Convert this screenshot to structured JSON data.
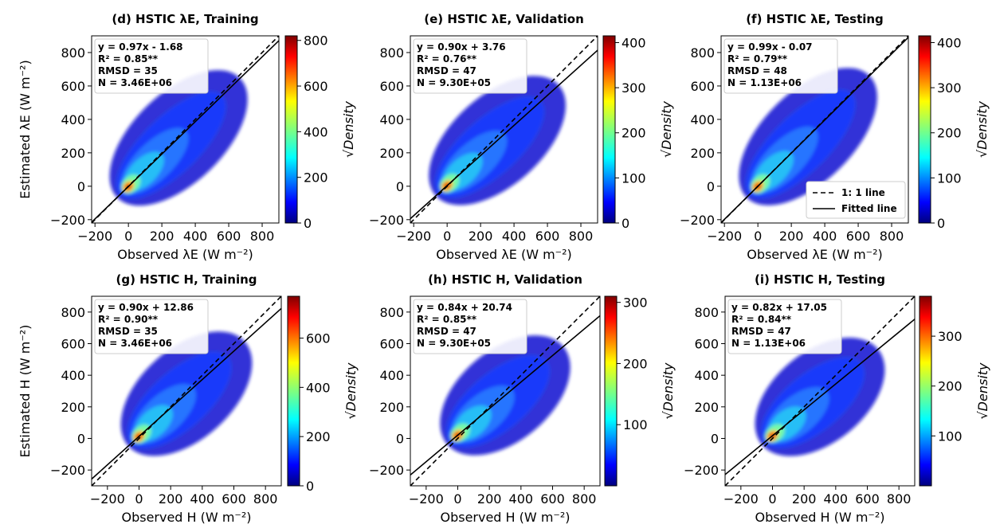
{
  "legend": {
    "one_to_one": "1: 1 line",
    "fitted": "Fitted line"
  },
  "cbar_label": "√Density",
  "chart_data": [
    {
      "type": "scatter",
      "title": "(d) HSTIC λE, Training",
      "xlabel": "Observed λE (W m⁻²)",
      "ylabel": "Estimated λE (W m⁻²)",
      "xlim": [
        -220,
        900
      ],
      "ylim": [
        -220,
        900
      ],
      "xticks": [
        -200,
        0,
        200,
        400,
        600,
        800
      ],
      "yticks": [
        -200,
        0,
        200,
        400,
        600,
        800
      ],
      "fit": {
        "slope": 0.97,
        "intercept": -1.68
      },
      "stats": [
        "y = 0.97x - 1.68",
        "R² = 0.85**",
        "RMSD = 35",
        "N = 3.46E+06"
      ],
      "colorbar": {
        "min": 0,
        "max": 820,
        "ticks": [
          0,
          200,
          400,
          600,
          800
        ]
      },
      "legend_shown": false
    },
    {
      "type": "scatter",
      "title": "(e) HSTIC λE, Validation",
      "xlabel": "Observed λE (W m⁻²)",
      "ylabel": "",
      "xlim": [
        -220,
        900
      ],
      "ylim": [
        -220,
        900
      ],
      "xticks": [
        -200,
        0,
        200,
        400,
        600,
        800
      ],
      "yticks": [
        -200,
        0,
        200,
        400,
        600,
        800
      ],
      "fit": {
        "slope": 0.9,
        "intercept": 3.76
      },
      "stats": [
        "y = 0.90x + 3.76",
        "R² = 0.76**",
        "RMSD = 47",
        "N = 9.30E+05"
      ],
      "colorbar": {
        "min": 0,
        "max": 415,
        "ticks": [
          0,
          100,
          200,
          300,
          400
        ]
      },
      "legend_shown": false
    },
    {
      "type": "scatter",
      "title": "(f) HSTIC λE, Testing",
      "xlabel": "Observed λE (W m⁻²)",
      "ylabel": "",
      "xlim": [
        -220,
        900
      ],
      "ylim": [
        -220,
        900
      ],
      "xticks": [
        -200,
        0,
        200,
        400,
        600,
        800
      ],
      "yticks": [
        -200,
        0,
        200,
        400,
        600,
        800
      ],
      "fit": {
        "slope": 0.99,
        "intercept": -0.07
      },
      "stats": [
        "y = 0.99x - 0.07",
        "R² = 0.79**",
        "RMSD = 48",
        "N = 1.13E+06"
      ],
      "colorbar": {
        "min": 0,
        "max": 415,
        "ticks": [
          0,
          100,
          200,
          300,
          400
        ]
      },
      "legend_shown": true
    },
    {
      "type": "scatter",
      "title": "(g) HSTIC H, Training",
      "xlabel": "Observed H (W m⁻²)",
      "ylabel": "Estimated H (W m⁻²)",
      "xlim": [
        -300,
        900
      ],
      "ylim": [
        -300,
        900
      ],
      "xticks": [
        -200,
        0,
        200,
        400,
        600,
        800
      ],
      "yticks": [
        -200,
        0,
        200,
        400,
        600,
        800
      ],
      "fit": {
        "slope": 0.9,
        "intercept": 12.86
      },
      "stats": [
        "y = 0.90x + 12.86",
        "R² = 0.90**",
        "RMSD = 35",
        "N = 3.46E+06"
      ],
      "colorbar": {
        "min": 0,
        "max": 770,
        "ticks": [
          0,
          200,
          400,
          600
        ]
      },
      "legend_shown": false
    },
    {
      "type": "scatter",
      "title": "(h) HSTIC H, Validation",
      "xlabel": "Observed H (W m⁻²)",
      "ylabel": "",
      "xlim": [
        -300,
        900
      ],
      "ylim": [
        -300,
        900
      ],
      "xticks": [
        -200,
        0,
        200,
        400,
        600,
        800
      ],
      "yticks": [
        -200,
        0,
        200,
        400,
        600,
        800
      ],
      "fit": {
        "slope": 0.84,
        "intercept": 20.74
      },
      "stats": [
        "y = 0.84x + 20.74",
        "R² = 0.85**",
        "RMSD = 47",
        "N = 9.30E+05"
      ],
      "colorbar": {
        "min": 0,
        "max": 310,
        "ticks": [
          100,
          200,
          300
        ]
      },
      "legend_shown": false
    },
    {
      "type": "scatter",
      "title": "(i) HSTIC H, Testing",
      "xlabel": "Observed H (W m⁻²)",
      "ylabel": "",
      "xlim": [
        -300,
        900
      ],
      "ylim": [
        -300,
        900
      ],
      "xticks": [
        -200,
        0,
        200,
        400,
        600,
        800
      ],
      "yticks": [
        -200,
        0,
        200,
        400,
        600,
        800
      ],
      "fit": {
        "slope": 0.82,
        "intercept": 17.05
      },
      "stats": [
        "y = 0.82x + 17.05",
        "R² = 0.84**",
        "RMSD = 47",
        "N = 1.13E+06"
      ],
      "colorbar": {
        "min": 0,
        "max": 380,
        "ticks": [
          100,
          200,
          300
        ]
      },
      "legend_shown": false
    }
  ]
}
